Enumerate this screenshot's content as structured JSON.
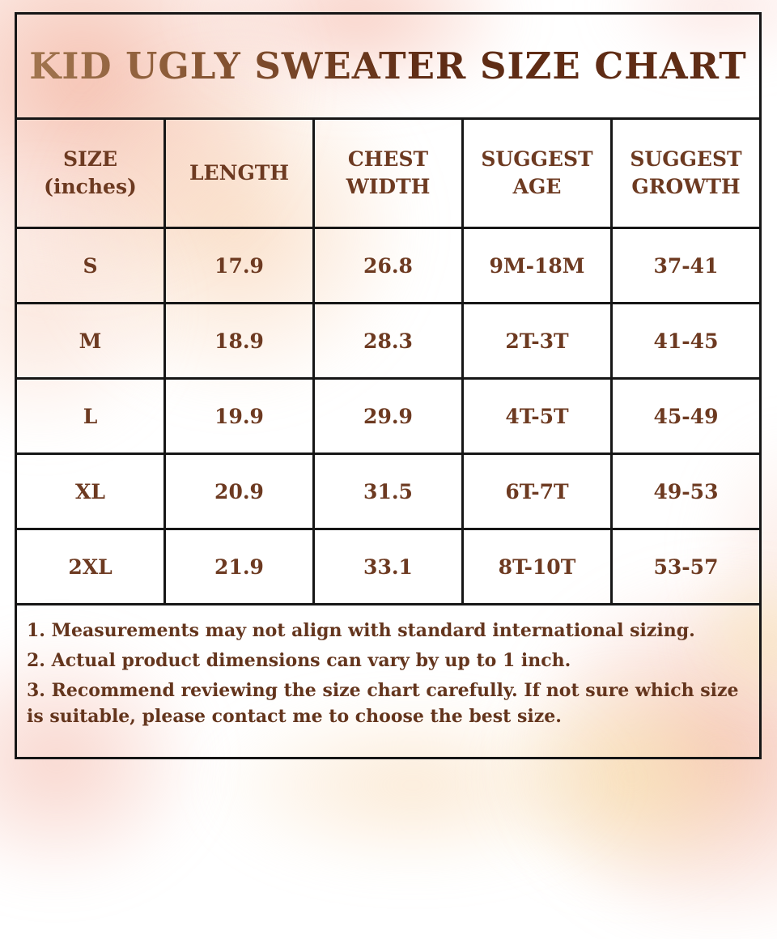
{
  "title": "KID UGLY SWEATER SIZE CHART",
  "colors": {
    "text_brown": "#6d3a21",
    "title_brown_dark": "#5f2c15",
    "title_brown_light": "#a1754f",
    "border": "#161616",
    "wash_salmon": "#f0a087",
    "wash_peach": "#f6c69e",
    "wash_yellow": "#f7e1a0"
  },
  "table": {
    "headers": [
      "SIZE\n(inches)",
      "LENGTH",
      "CHEST\nWIDTH",
      "SUGGEST\nAGE",
      "SUGGEST\nGROWTH"
    ],
    "rows": [
      [
        "S",
        "17.9",
        "26.8",
        "9M-18M",
        "37-41"
      ],
      [
        "M",
        "18.9",
        "28.3",
        "2T-3T",
        "41-45"
      ],
      [
        "L",
        "19.9",
        "29.9",
        "4T-5T",
        "45-49"
      ],
      [
        "XL",
        "20.9",
        "31.5",
        "6T-7T",
        "49-53"
      ],
      [
        "2XL",
        "21.9",
        "33.1",
        "8T-10T",
        "53-57"
      ]
    ]
  },
  "notes": [
    "1. Measurements may not align with standard international sizing.",
    "2. Actual product dimensions can vary by up to 1 inch.",
    "3. Recommend reviewing the size chart carefully. If not sure which size is suitable, please contact me to choose the best size."
  ]
}
